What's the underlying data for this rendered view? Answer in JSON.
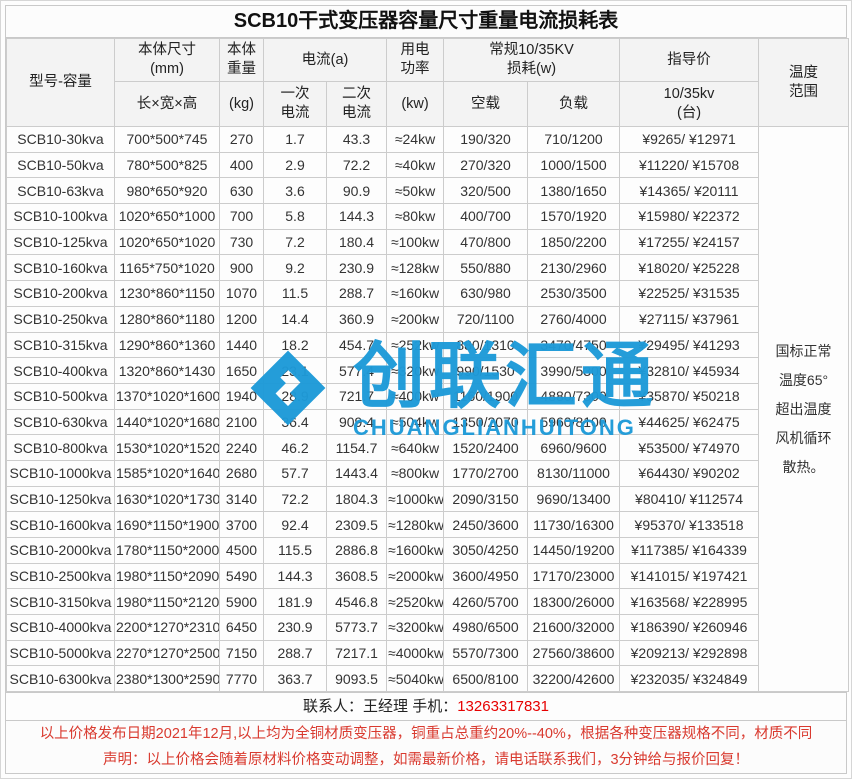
{
  "title": "SCB10干式变压器容量尺寸重量电流损耗表",
  "header": {
    "model": "型号-容量",
    "size_top": "本体尺寸\n(mm)",
    "size_sub": "长×宽×高",
    "weight_top": "本体\n重量",
    "weight_sub": "(kg)",
    "current_group": "电流(a)",
    "current_primary": "一次\n电流",
    "current_secondary": "二次\n电流",
    "power_top": "用电\n功率",
    "power_sub": "(kw)",
    "loss_group": "常规10/35KV\n损耗(w)",
    "loss_noload": "空载",
    "loss_load": "负载",
    "price_top": "指导价",
    "price_sub": "10/35kv\n(台)",
    "temp": "温度\n范围"
  },
  "table": {
    "temperature_note": [
      "国标正常",
      "温度65°",
      "超出温度",
      "风机循环",
      "散热。"
    ],
    "rows": [
      {
        "model": "SCB10-30kva",
        "dims": "700*500*745",
        "weight": "270",
        "i1": "1.7",
        "i2": "43.3",
        "power": "≈24kw",
        "noload": "190/320",
        "load": "710/1200",
        "price": "¥9265/ ¥12971"
      },
      {
        "model": "SCB10-50kva",
        "dims": "780*500*825",
        "weight": "400",
        "i1": "2.9",
        "i2": "72.2",
        "power": "≈40kw",
        "noload": "270/320",
        "load": "1000/1500",
        "price": "¥11220/ ¥15708"
      },
      {
        "model": "SCB10-63kva",
        "dims": "980*650*920",
        "weight": "630",
        "i1": "3.6",
        "i2": "90.9",
        "power": "≈50kw",
        "noload": "320/500",
        "load": "1380/1650",
        "price": "¥14365/ ¥20111"
      },
      {
        "model": "SCB10-100kva",
        "dims": "1020*650*1000",
        "weight": "700",
        "i1": "5.8",
        "i2": "144.3",
        "power": "≈80kw",
        "noload": "400/700",
        "load": "1570/1920",
        "price": "¥15980/ ¥22372"
      },
      {
        "model": "SCB10-125kva",
        "dims": "1020*650*1020",
        "weight": "730",
        "i1": "7.2",
        "i2": "180.4",
        "power": "≈100kw",
        "noload": "470/800",
        "load": "1850/2200",
        "price": "¥17255/ ¥24157"
      },
      {
        "model": "SCB10-160kva",
        "dims": "1165*750*1020",
        "weight": "900",
        "i1": "9.2",
        "i2": "230.9",
        "power": "≈128kw",
        "noload": "550/880",
        "load": "2130/2960",
        "price": "¥18020/ ¥25228"
      },
      {
        "model": "SCB10-200kva",
        "dims": "1230*860*1150",
        "weight": "1070",
        "i1": "11.5",
        "i2": "288.7",
        "power": "≈160kw",
        "noload": "630/980",
        "load": "2530/3500",
        "price": "¥22525/ ¥31535"
      },
      {
        "model": "SCB10-250kva",
        "dims": "1280*860*1180",
        "weight": "1200",
        "i1": "14.4",
        "i2": "360.9",
        "power": "≈200kw",
        "noload": "720/1100",
        "load": "2760/4000",
        "price": "¥27115/ ¥37961"
      },
      {
        "model": "SCB10-315kva",
        "dims": "1290*860*1360",
        "weight": "1440",
        "i1": "18.2",
        "i2": "454.7",
        "power": "≈252kw",
        "noload": "880/1310",
        "load": "3470/4750",
        "price": "¥29495/ ¥41293"
      },
      {
        "model": "SCB10-400kva",
        "dims": "1320*860*1430",
        "weight": "1650",
        "i1": "23.1",
        "i2": "577.4",
        "power": "≈320kw",
        "noload": "990/1530",
        "load": "3990/5300",
        "price": "¥32810/ ¥45934"
      },
      {
        "model": "SCB10-500kva",
        "dims": "1370*1020*1600",
        "weight": "1940",
        "i1": "28.9",
        "i2": "721.7",
        "power": "≈400kw",
        "noload": "1160/1900",
        "load": "4880/7300",
        "price": "¥35870/ ¥50218"
      },
      {
        "model": "SCB10-630kva",
        "dims": "1440*1020*1680",
        "weight": "2100",
        "i1": "36.4",
        "i2": "909.4",
        "power": "≈504kw",
        "noload": "1350/2070",
        "load": "5960/8100",
        "price": "¥44625/ ¥62475"
      },
      {
        "model": "SCB10-800kva",
        "dims": "1530*1020*1520",
        "weight": "2240",
        "i1": "46.2",
        "i2": "1154.7",
        "power": "≈640kw",
        "noload": "1520/2400",
        "load": "6960/9600",
        "price": "¥53500/ ¥74970"
      },
      {
        "model": "SCB10-1000kva",
        "dims": "1585*1020*1640",
        "weight": "2680",
        "i1": "57.7",
        "i2": "1443.4",
        "power": "≈800kw",
        "noload": "1770/2700",
        "load": "8130/11000",
        "price": "¥64430/ ¥90202"
      },
      {
        "model": "SCB10-1250kva",
        "dims": "1630*1020*1730",
        "weight": "3140",
        "i1": "72.2",
        "i2": "1804.3",
        "power": "≈1000kw",
        "noload": "2090/3150",
        "load": "9690/13400",
        "price": "¥80410/ ¥112574"
      },
      {
        "model": "SCB10-1600kva",
        "dims": "1690*1150*1900",
        "weight": "3700",
        "i1": "92.4",
        "i2": "2309.5",
        "power": "≈1280kw",
        "noload": "2450/3600",
        "load": "11730/16300",
        "price": "¥95370/ ¥133518"
      },
      {
        "model": "SCB10-2000kva",
        "dims": "1780*1150*2000",
        "weight": "4500",
        "i1": "115.5",
        "i2": "2886.8",
        "power": "≈1600kw",
        "noload": "3050/4250",
        "load": "14450/19200",
        "price": "¥117385/ ¥164339"
      },
      {
        "model": "SCB10-2500kva",
        "dims": "1980*1150*2090",
        "weight": "5490",
        "i1": "144.3",
        "i2": "3608.5",
        "power": "≈2000kw",
        "noload": "3600/4950",
        "load": "17170/23000",
        "price": "¥141015/ ¥197421"
      },
      {
        "model": "SCB10-3150kva",
        "dims": "1980*1150*2120",
        "weight": "5900",
        "i1": "181.9",
        "i2": "4546.8",
        "power": "≈2520kw",
        "noload": "4260/5700",
        "load": "18300/26000",
        "price": "¥163568/ ¥228995"
      },
      {
        "model": "SCB10-4000kva",
        "dims": "2200*1270*2310",
        "weight": "6450",
        "i1": "230.9",
        "i2": "5773.7",
        "power": "≈3200kw",
        "noload": "4980/6500",
        "load": "21600/32000",
        "price": "¥186390/ ¥260946"
      },
      {
        "model": "SCB10-5000kva",
        "dims": "2270*1270*2500",
        "weight": "7150",
        "i1": "288.7",
        "i2": "7217.1",
        "power": "≈4000kw",
        "noload": "5570/7300",
        "load": "27560/38600",
        "price": "¥209213/ ¥292898"
      },
      {
        "model": "SCB10-6300kva",
        "dims": "2380*1300*2590",
        "weight": "7770",
        "i1": "363.7",
        "i2": "9093.5",
        "power": "≈5040kw",
        "noload": "6500/8100",
        "load": "32200/42600",
        "price": "¥232035/ ¥324849"
      }
    ]
  },
  "watermark": {
    "text": "创联汇通",
    "subtext": "CHUANGLIANHUITONG",
    "color": "#1e9ad8"
  },
  "footer": {
    "contact_prefix": "联系人：王经理  手机：",
    "phone": "13263317831",
    "notice_line1": "以上价格发布日期2021年12月,以上均为全铜材质变压器，铜重占总重约20%--40%，根据各种变压器规格不同，材质不同",
    "notice_line2": "声明：以上价格会随着原材料价格变动调整，如需最新价格，请电话联系我们，3分钟给与报价回复！"
  }
}
